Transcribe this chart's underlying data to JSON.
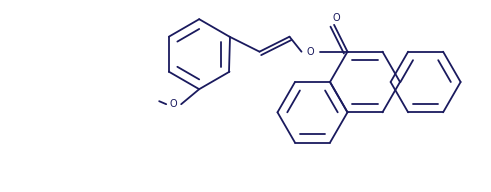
{
  "background_color": "#ffffff",
  "line_color": "#1a1a5e",
  "line_width": 1.3,
  "figsize": [
    4.91,
    1.92
  ],
  "dpi": 100,
  "xlim": [
    0,
    49.1
  ],
  "ylim": [
    0,
    19.2
  ]
}
